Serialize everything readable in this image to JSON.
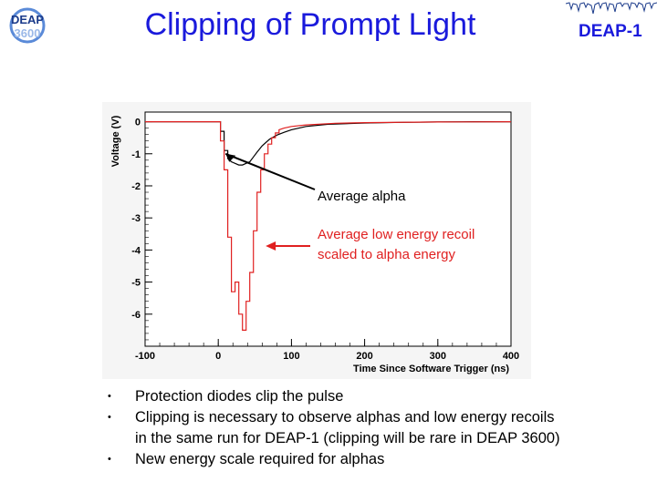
{
  "header": {
    "title": "Clipping of Prompt Light",
    "logo_text_top": "DEAP",
    "logo_text_bottom": "3600",
    "badge": "DEAP-1"
  },
  "colors": {
    "title_blue": "#1a1adc",
    "alpha_trace": "#000000",
    "recoil_trace": "#e02020",
    "annotation_red": "#e02020"
  },
  "chart_data": {
    "type": "line",
    "title": "",
    "xlabel": "Time Since Software Trigger (ns)",
    "ylabel": "Voltage (V)",
    "xlim": [
      -100,
      400
    ],
    "ylim": [
      -7,
      0.3
    ],
    "x_ticks": [
      "-100",
      "0",
      "100",
      "200",
      "300",
      "400"
    ],
    "x_tick_values": [
      -100,
      0,
      100,
      200,
      300,
      400
    ],
    "y_ticks": [
      "0",
      "-1",
      "-2",
      "-3",
      "-4",
      "-5",
      "-6"
    ],
    "y_tick_values": [
      0,
      -1,
      -2,
      -3,
      -4,
      -5,
      -6
    ],
    "grid": false,
    "series": [
      {
        "name": "Average alpha",
        "color": "#000000",
        "x": [
          -100,
          0,
          3,
          3,
          8,
          8,
          13,
          13,
          18,
          23,
          28,
          33,
          38,
          43,
          48,
          53,
          60,
          70,
          80,
          90,
          100,
          120,
          150,
          200,
          250,
          300,
          350,
          400
        ],
        "y": [
          0.0,
          0.0,
          0.0,
          -0.3,
          -0.3,
          -0.9,
          -0.9,
          -1.15,
          -1.25,
          -1.3,
          -1.35,
          -1.35,
          -1.3,
          -1.25,
          -1.1,
          -0.95,
          -0.75,
          -0.55,
          -0.42,
          -0.33,
          -0.25,
          -0.15,
          -0.08,
          -0.04,
          -0.02,
          -0.01,
          0.0,
          0.0
        ]
      },
      {
        "name": "Average low energy recoil scaled to alpha energy",
        "color": "#e02020",
        "x": [
          -100,
          0,
          3,
          3,
          8,
          8,
          13,
          13,
          18,
          18,
          23,
          23,
          28,
          28,
          33,
          33,
          38,
          38,
          43,
          43,
          48,
          48,
          53,
          53,
          58,
          58,
          63,
          63,
          68,
          68,
          73,
          73,
          78,
          78,
          83,
          83,
          90,
          100,
          120,
          160,
          200,
          300,
          400
        ],
        "y": [
          0.0,
          0.0,
          0.0,
          -0.6,
          -0.6,
          -1.5,
          -1.5,
          -3.6,
          -3.6,
          -5.3,
          -5.3,
          -5.0,
          -5.0,
          -6.0,
          -6.0,
          -6.5,
          -6.5,
          -5.6,
          -5.6,
          -4.7,
          -4.7,
          -3.4,
          -3.4,
          -2.2,
          -2.2,
          -1.5,
          -1.5,
          -1.0,
          -1.0,
          -0.7,
          -0.7,
          -0.5,
          -0.5,
          -0.35,
          -0.35,
          -0.25,
          -0.2,
          -0.15,
          -0.1,
          -0.05,
          -0.03,
          -0.01,
          0.0
        ]
      }
    ],
    "annotations": [
      {
        "name": "alpha-label",
        "text": "Average alpha",
        "color": "#000000",
        "arrow_to": [
          5,
          -1.0
        ]
      },
      {
        "name": "recoil-label",
        "lines": [
          "Average low energy recoil",
          "scaled to alpha energy"
        ],
        "color": "#e02020",
        "arrow_to": [
          -35,
          -3.7
        ]
      }
    ]
  },
  "bullets": [
    {
      "lines": [
        "Protection diodes clip the pulse"
      ]
    },
    {
      "lines": [
        "Clipping is necessary to observe alphas and low energy recoils",
        "in the same run for DEAP-1 (clipping will be rare in DEAP 3600)"
      ]
    },
    {
      "lines": [
        "New energy scale required for alphas"
      ]
    }
  ],
  "bullet_marker": "•"
}
